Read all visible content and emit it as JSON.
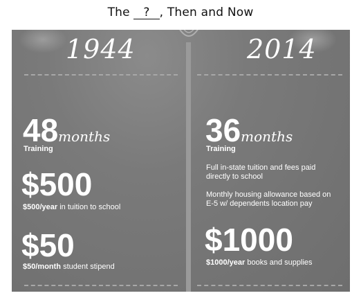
{
  "title": {
    "prefix": "The",
    "blank": "?",
    "suffix": ", Then and Now"
  },
  "left": {
    "year": "1944",
    "training_value": "48",
    "training_unit": "months",
    "training_label": "Training",
    "tuition_value": "$500",
    "tuition_label_bold": "$500/year",
    "tuition_label_rest": " in tuition to school",
    "stipend_value": "$50",
    "stipend_label_bold": "$50/month",
    "stipend_label_rest": " student stipend"
  },
  "right": {
    "year": "2014",
    "training_value": "36",
    "training_unit": "months",
    "training_label": "Training",
    "tuition_note": "Full in-state tuition and fees paid directly to school",
    "housing_note": "Monthly housing allowance based on E-5 w/ dependents location pay",
    "books_value": "$1000",
    "books_label_bold": "$1000/year",
    "books_label_rest": " books and supplies"
  },
  "colors": {
    "panel": "#7a7a7a",
    "text": "#ffffff",
    "divider": "#9a9a9a"
  }
}
